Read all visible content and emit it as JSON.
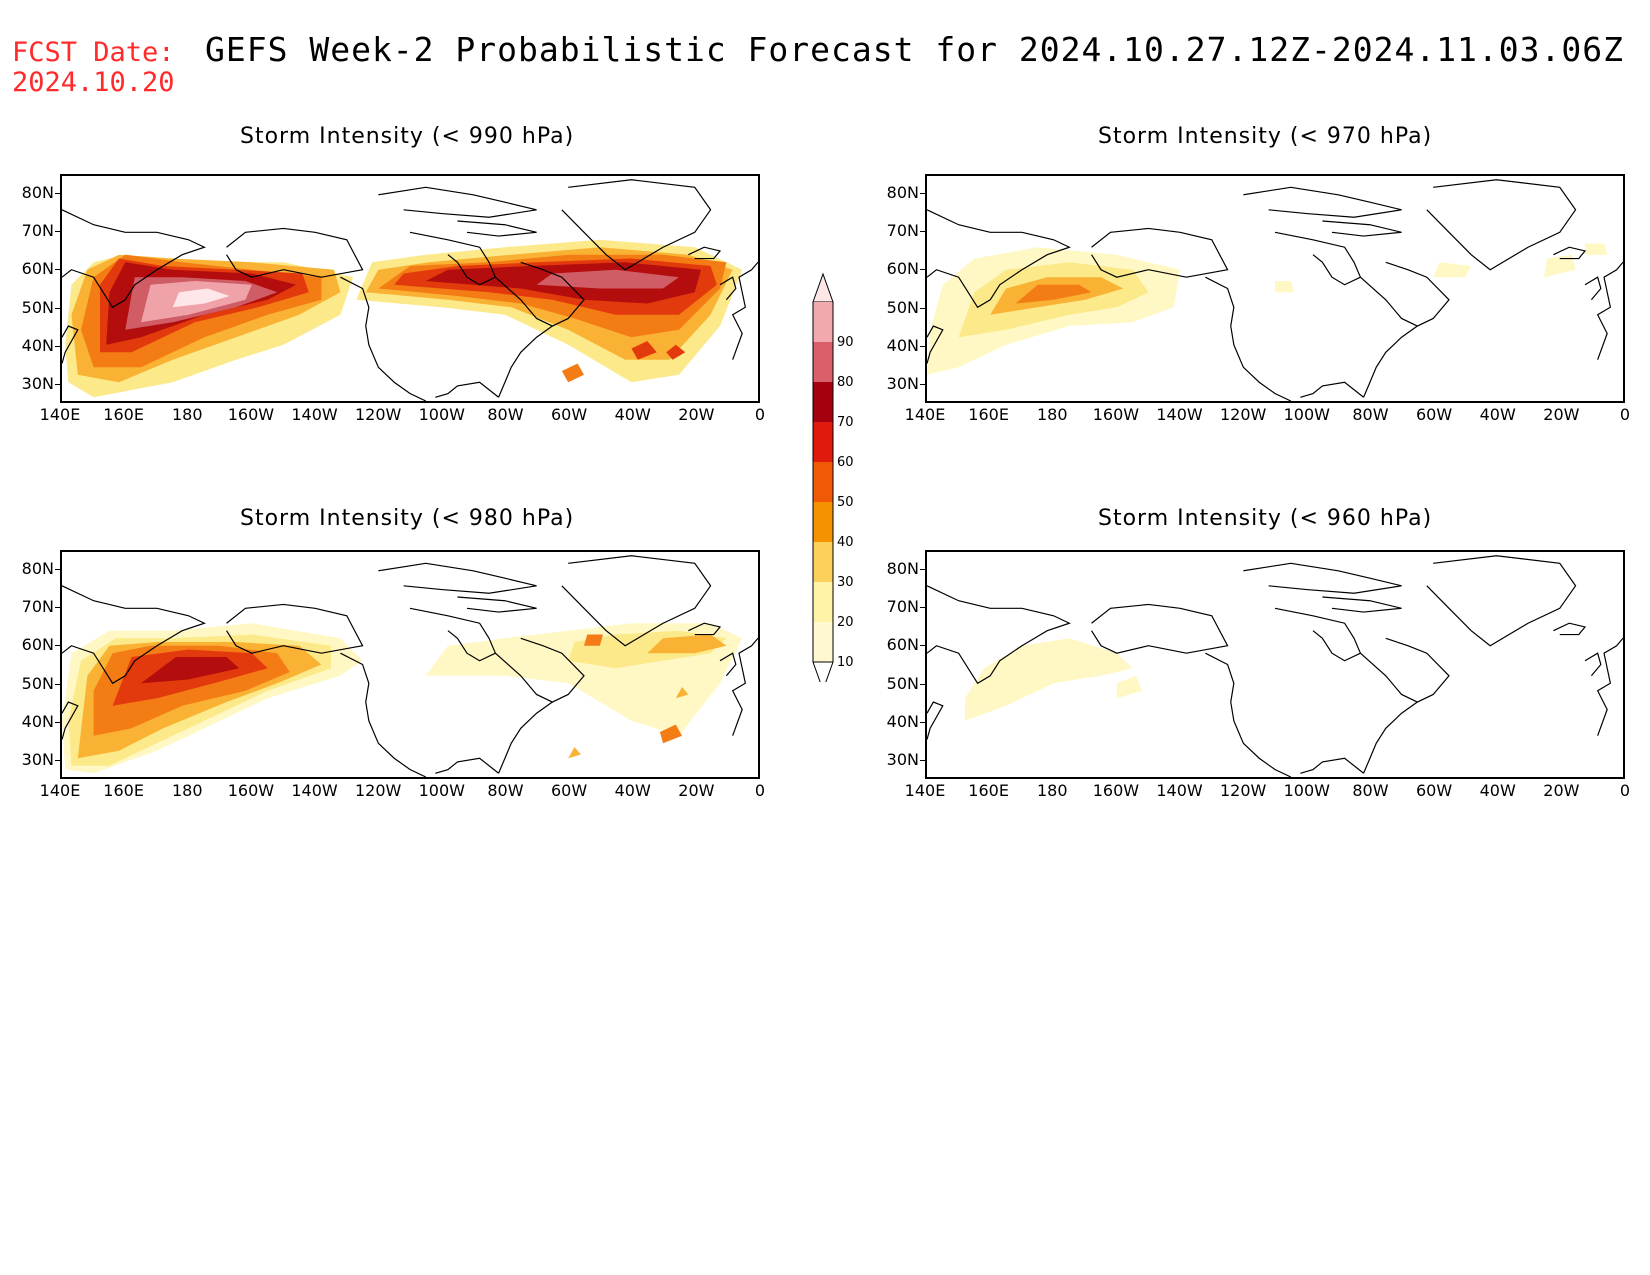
{
  "header": {
    "fcst_label": "FCST Date:",
    "fcst_date": "2024.10.20",
    "title": "GEFS Week-2 Probabilistic Forecast for 2024.10.27.12Z-2024.11.03.06Z"
  },
  "axes": {
    "lat_labels": [
      "80N",
      "70N",
      "60N",
      "50N",
      "40N",
      "30N"
    ],
    "lon_labels": [
      "140E",
      "160E",
      "180",
      "160W",
      "140W",
      "120W",
      "100W",
      "80W",
      "60W",
      "40W",
      "20W",
      "0"
    ]
  },
  "panels": [
    {
      "id": "p990",
      "title": "Storm Intensity (< 990 hPa)"
    },
    {
      "id": "p970",
      "title": "Storm Intensity (< 970 hPa)"
    },
    {
      "id": "p980",
      "title": "Storm Intensity (< 980 hPa)"
    },
    {
      "id": "p960",
      "title": "Storm Intensity (< 960 hPa)"
    }
  ],
  "colorbar": {
    "levels": [
      "90",
      "80",
      "70",
      "60",
      "50",
      "40",
      "30",
      "20",
      "10"
    ],
    "colors": [
      "#f2a9ae",
      "#d9606a",
      "#a50010",
      "#e01b0d",
      "#f05a05",
      "#f59200",
      "#fbd15c",
      "#fff3a8",
      "#fff8d0",
      "#ffe6e6"
    ]
  },
  "palette": {
    "p10": "#fff8c4",
    "p20": "#fce98a",
    "p30": "#f9b233",
    "p40": "#f47c14",
    "p50": "#e23a0d",
    "p60": "#b40d0d",
    "p70": "#d05c66",
    "p80": "#efa3a9",
    "p90": "#ffe6e8"
  }
}
